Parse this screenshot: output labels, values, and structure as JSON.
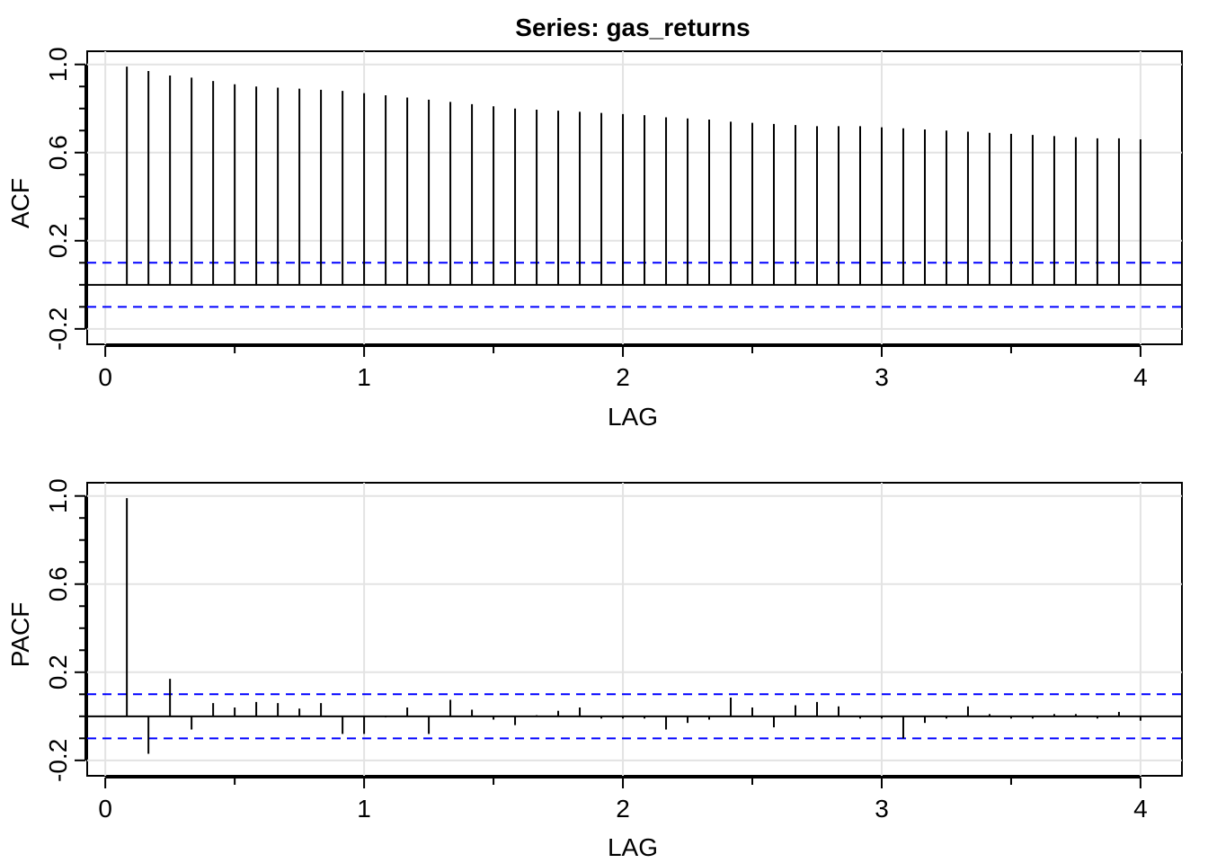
{
  "chart_data": [
    {
      "type": "bar",
      "title": "Series:  gas_returns",
      "xlabel": "LAG",
      "ylabel": "ACF",
      "xlim": [
        -0.07,
        4.16
      ],
      "ylim": [
        -0.27,
        1.06
      ],
      "x_ticks": [
        "0",
        "1",
        "2",
        "3",
        "4"
      ],
      "y_ticks": [
        "-0.2",
        "0.2",
        "0.6",
        "1.0"
      ],
      "grid": true,
      "ci_level": 0.1,
      "ci_color": "#0000ff",
      "lags": [
        0.0833,
        0.1667,
        0.25,
        0.3333,
        0.4167,
        0.5,
        0.5833,
        0.6667,
        0.75,
        0.8333,
        0.9167,
        1.0,
        1.0833,
        1.1667,
        1.25,
        1.3333,
        1.4167,
        1.5,
        1.5833,
        1.6667,
        1.75,
        1.8333,
        1.9167,
        2.0,
        2.0833,
        2.1667,
        2.25,
        2.3333,
        2.4167,
        2.5,
        2.5833,
        2.6667,
        2.75,
        2.8333,
        2.9167,
        3.0,
        3.0833,
        3.1667,
        3.25,
        3.3333,
        3.4167,
        3.5,
        3.5833,
        3.6667,
        3.75,
        3.8333,
        3.9167,
        4.0
      ],
      "values": [
        0.99,
        0.97,
        0.95,
        0.94,
        0.925,
        0.91,
        0.9,
        0.895,
        0.89,
        0.885,
        0.88,
        0.87,
        0.86,
        0.85,
        0.84,
        0.83,
        0.82,
        0.81,
        0.8,
        0.795,
        0.79,
        0.785,
        0.78,
        0.775,
        0.77,
        0.76,
        0.755,
        0.75,
        0.74,
        0.735,
        0.73,
        0.725,
        0.72,
        0.72,
        0.72,
        0.715,
        0.71,
        0.705,
        0.7,
        0.695,
        0.69,
        0.685,
        0.68,
        0.675,
        0.67,
        0.665,
        0.665,
        0.66
      ]
    },
    {
      "type": "bar",
      "title": "",
      "xlabel": "LAG",
      "ylabel": "PACF",
      "xlim": [
        -0.07,
        4.16
      ],
      "ylim": [
        -0.27,
        1.06
      ],
      "x_ticks": [
        "0",
        "1",
        "2",
        "3",
        "4"
      ],
      "y_ticks": [
        "-0.2",
        "0.2",
        "0.6",
        "1.0"
      ],
      "grid": true,
      "ci_level": 0.1,
      "ci_color": "#0000ff",
      "lags": [
        0.0833,
        0.1667,
        0.25,
        0.3333,
        0.4167,
        0.5,
        0.5833,
        0.6667,
        0.75,
        0.8333,
        0.9167,
        1.0,
        1.0833,
        1.1667,
        1.25,
        1.3333,
        1.4167,
        1.5,
        1.5833,
        1.6667,
        1.75,
        1.8333,
        1.9167,
        2.0,
        2.0833,
        2.1667,
        2.25,
        2.3333,
        2.4167,
        2.5,
        2.5833,
        2.6667,
        2.75,
        2.8333,
        2.9167,
        3.0,
        3.0833,
        3.1667,
        3.25,
        3.3333,
        3.4167,
        3.5,
        3.5833,
        3.6667,
        3.75,
        3.8333,
        3.9167,
        4.0
      ],
      "values": [
        0.99,
        -0.17,
        0.17,
        -0.06,
        0.06,
        0.04,
        0.065,
        0.06,
        0.035,
        0.06,
        -0.08,
        -0.08,
        -0.005,
        0.04,
        -0.08,
        0.075,
        0.03,
        -0.015,
        -0.04,
        0.005,
        0.025,
        0.04,
        -0.01,
        -0.01,
        -0.01,
        -0.06,
        -0.03,
        -0.015,
        0.085,
        0.04,
        -0.05,
        0.05,
        0.065,
        0.045,
        -0.01,
        -0.01,
        -0.1,
        -0.03,
        -0.01,
        0.045,
        0.01,
        -0.01,
        -0.01,
        0.01,
        0.01,
        -0.01,
        0.02,
        -0.02
      ]
    }
  ]
}
